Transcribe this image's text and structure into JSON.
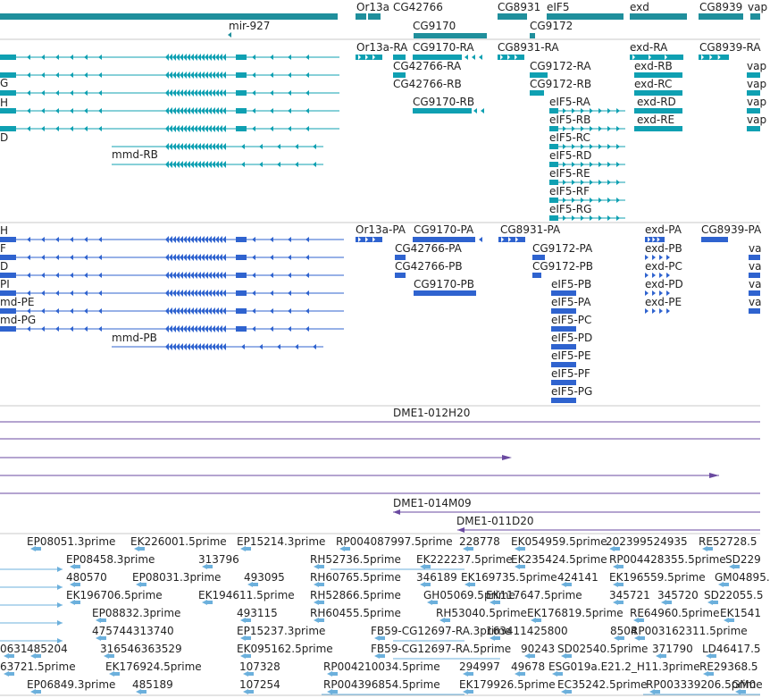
{
  "colors": {
    "gene": "#1f8f9c",
    "transcript_teal": "#0fa0b2",
    "transcript_blue": "#2f63cf",
    "clone": "#6a4aa0",
    "est": "#6cb0dc",
    "separator": "#c8c8c8"
  },
  "gene_labels": [
    "mir-927",
    "Or13a",
    "CG42766",
    "CG9170",
    "CG8931",
    "CG9172",
    "eIF5",
    "exd",
    "CG8939",
    "vap"
  ],
  "rna_track": {
    "left_labels": [
      "G",
      "H",
      "",
      "D",
      "",
      "mmd-RB"
    ],
    "labels": [
      "Or13a-RA",
      "CG9170-RA",
      "CG42766-RA",
      "CG42766-RB",
      "CG9170-RB",
      "CG8931-RA",
      "CG9172-RA",
      "CG9172-RB",
      "eIF5-RA",
      "eIF5-RB",
      "eIF5-RC",
      "eIF5-RD",
      "eIF5-RE",
      "eIF5-RF",
      "eIF5-RG",
      "exd-RA",
      "exd-RB",
      "exd-RC",
      "exd-RD",
      "exd-RE",
      "CG8939-RA",
      "vap",
      "vap",
      "vap",
      "vap"
    ]
  },
  "protein_track": {
    "left_labels": [
      "H",
      "F",
      "D",
      "PI",
      "md-PE",
      "md-PG",
      "mmd-PB"
    ],
    "labels": [
      "Or13a-PA",
      "CG9170-PA",
      "CG42766-PA",
      "CG42766-PB",
      "CG9170-PB",
      "CG8931-PA",
      "CG9172-PA",
      "CG9172-PB",
      "eIF5-PB",
      "eIF5-PA",
      "eIF5-PC",
      "eIF5-PD",
      "eIF5-PE",
      "eIF5-PF",
      "eIF5-PG",
      "exd-PA",
      "exd-PB",
      "exd-PC",
      "exd-PD",
      "exd-PE",
      "CG8939-PA",
      "va",
      "va",
      "va",
      "va"
    ]
  },
  "clone_track": {
    "labels": [
      "DME1-012H20",
      "DME1-014M09",
      "DME1-011D20"
    ]
  },
  "est_track": {
    "labels": [
      "EP08051.3prime",
      "EK226001.5prime",
      "EP15214.3prime",
      "RP004087997.5prime",
      "228778",
      "EK054959.5prime",
      "202399524935",
      "RE52728.5",
      "EP08458.3prime",
      "313796",
      "RH52736.5prime",
      "EK222237.5prime",
      "EK235424.5prime",
      "RP004428355.5prime",
      "SD229",
      "480570",
      "EP08031.3prime",
      "493095",
      "RH60765.5prime",
      "346189",
      "EK169735.5prime",
      "424141",
      "EK196559.5prime",
      "GM04895.",
      "EK196706.5prime",
      "EK194611.5prime",
      "RH52866.5prime",
      "GH05069.5prime",
      "EK117647.5prime",
      "345721",
      "345720",
      "SD22055.5",
      "EP08832.3prime",
      "493115",
      "RH60455.5prime",
      "RH53040.5prime",
      "EK176819.5prime",
      "RE64960.5prime",
      "EK1541",
      "475744313740",
      "EP15237.3prime",
      "FB59-CG12697-RA.3prime",
      "163411425800",
      "8504",
      "RP003162311.5prime",
      "0631",
      "485204",
      "316546363529",
      "EK095162.5prime",
      "FB59-CG12697-RA.5prime",
      "90243",
      "SD02540.5prime",
      "371790",
      "LD46417.5",
      "63721.5prime",
      "EK176924.5prime",
      "107328",
      "RP004210034.5prime",
      "294997",
      "49678",
      "ESG019a.E21.2_H11.3prime",
      "RE29368.5",
      "EP06849.3prime",
      "485189",
      "107254",
      "RP004396854.5prime",
      "EK179926.5prime",
      "EC35242.5prime",
      "RP003339206.5prime",
      "GM0"
    ]
  }
}
